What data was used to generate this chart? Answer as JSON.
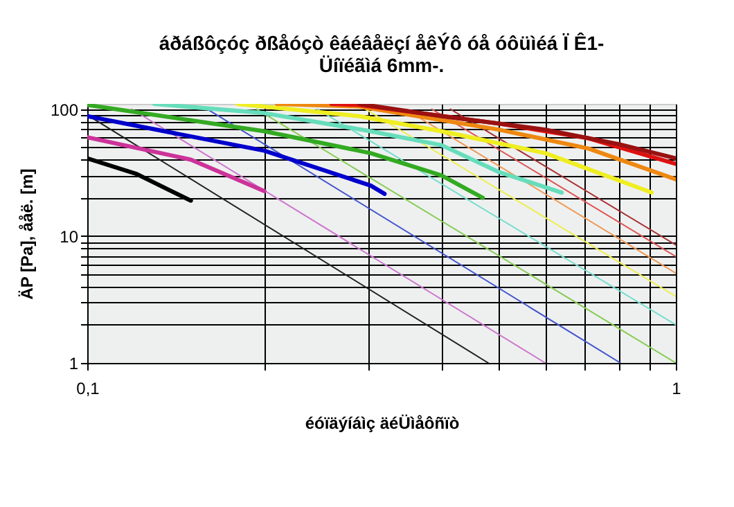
{
  "chart_data": {
    "type": "line",
    "title": "áðáßôçóç ðßåóçò êáéâåëçí åêÝô óå óôüìéá Ï Ê1-\nÜíïéãìá 6mm-.",
    "xlabel": "éóïäýíáìç äéÜìåôñïò",
    "ylabel": "ÄP [Pa], ååë. [m]",
    "log": "xy",
    "grid": true,
    "legend": false,
    "xlim": [
      0.1,
      1
    ],
    "ylim": [
      1,
      110
    ],
    "xticks": [
      {
        "value": 0.1,
        "label": "0,1"
      },
      {
        "value": 0.2,
        "label": null
      },
      {
        "value": 0.3,
        "label": null
      },
      {
        "value": 0.4,
        "label": null
      },
      {
        "value": 0.5,
        "label": null
      },
      {
        "value": 0.6,
        "label": null
      },
      {
        "value": 0.7,
        "label": null
      },
      {
        "value": 0.8,
        "label": null
      },
      {
        "value": 0.9,
        "label": null
      },
      1
    ],
    "yticks": [
      1,
      {
        "value": 2,
        "label": null
      },
      {
        "value": 3,
        "label": null
      },
      {
        "value": 4,
        "label": null
      },
      {
        "value": 5,
        "label": null
      },
      {
        "value": 6,
        "label": null
      },
      {
        "value": 7,
        "label": null
      },
      {
        "value": 8,
        "label": null
      },
      {
        "value": 9,
        "label": null
      },
      10,
      {
        "value": 20,
        "label": null
      },
      {
        "value": 30,
        "label": null
      },
      {
        "value": 40,
        "label": null
      },
      {
        "value": 50,
        "label": null
      },
      {
        "value": 60,
        "label": null
      },
      {
        "value": 70,
        "label": null
      },
      {
        "value": 80,
        "label": null
      },
      {
        "value": 90,
        "label": null
      },
      100
    ],
    "series": [
      {
        "color": "#222222",
        "x": [
          0.1,
          0.48
        ],
        "values": [
          90,
          1
        ]
      },
      {
        "color": "#cc77cc",
        "x": [
          0.119,
          0.6
        ],
        "values": [
          100,
          1
        ]
      },
      {
        "color": "#4455cc",
        "x": [
          0.16,
          0.805
        ],
        "values": [
          100,
          1
        ]
      },
      {
        "color": "#88cc55",
        "x": [
          0.194,
          1
        ],
        "values": [
          100,
          1
        ]
      },
      {
        "color": "#77ddcc",
        "x": [
          0.246,
          1
        ],
        "values": [
          100,
          2
        ]
      },
      {
        "color": "#eeee55",
        "x": [
          0.297,
          1
        ],
        "values": [
          100,
          3.35
        ]
      },
      {
        "color": "#ee9955",
        "x": [
          0.347,
          1
        ],
        "values": [
          100,
          5.1
        ]
      },
      {
        "color": "#dd5555",
        "x": [
          0.385,
          1
        ],
        "values": [
          100,
          6.9
        ]
      },
      {
        "color": "#aa3333",
        "x": [
          0.414,
          1
        ],
        "values": [
          100,
          8.5
        ]
      },
      {
        "color": "#000000",
        "x": [
          0.1,
          0.121,
          0.15
        ],
        "values": [
          41,
          31,
          19
        ]
      },
      {
        "color": "#cc3399",
        "x": [
          0.1,
          0.15,
          0.2
        ],
        "values": [
          60,
          40,
          22.6
        ]
      },
      {
        "color": "#0000cc",
        "x": [
          0.1,
          0.2,
          0.303,
          0.32
        ],
        "values": [
          88,
          47,
          25,
          21.5
        ]
      },
      {
        "color": "#33aa22",
        "x": [
          0.1,
          0.2,
          0.303,
          0.4,
          0.47
        ],
        "values": [
          108,
          67,
          45,
          30,
          20
        ]
      },
      {
        "color": "#66ddbb",
        "x": [
          0.13,
          0.2,
          0.303,
          0.4,
          0.5,
          0.64
        ],
        "values": [
          110,
          93,
          67,
          52,
          32,
          22
        ]
      },
      {
        "color": "#eeee22",
        "x": [
          0.18,
          0.29,
          0.4,
          0.6,
          0.91
        ],
        "values": [
          110,
          88,
          67,
          45,
          22
        ]
      },
      {
        "color": "#ee8811",
        "x": [
          0.21,
          0.29,
          0.5,
          0.71,
          1
        ],
        "values": [
          110,
          105,
          69,
          49,
          28
        ]
      },
      {
        "color": "#dd1111",
        "x": [
          0.26,
          0.29,
          0.5,
          0.71,
          1
        ],
        "values": [
          110,
          108,
          77,
          59,
          37
        ]
      },
      {
        "color": "#991111",
        "x": [
          0.29,
          0.4,
          0.6,
          0.8,
          1
        ],
        "values": [
          110,
          88,
          69,
          53,
          41
        ]
      }
    ]
  }
}
